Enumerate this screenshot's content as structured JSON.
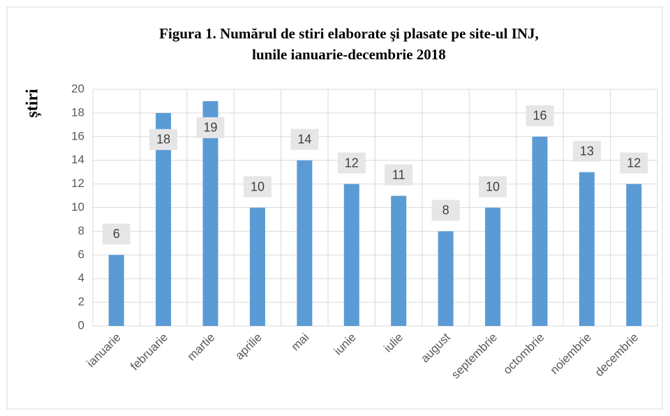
{
  "chart_data": {
    "type": "bar",
    "title": [
      "Figura 1. Numărul de stiri  elaborate şi plasate pe site-ul INJ,",
      "lunile ianuarie-decembrie 2018"
    ],
    "y_label": "știri",
    "categories": [
      "ianuarie",
      "februarie",
      "martie",
      "aprilie",
      "mai",
      "iunie",
      "iulie",
      "august",
      "septembrie",
      "octombrie",
      "noiembrie",
      "decembrie"
    ],
    "values": [
      6,
      18,
      19,
      10,
      14,
      12,
      11,
      8,
      10,
      16,
      13,
      12
    ],
    "color": "#5b9bd5",
    "ylim": [
      0,
      20
    ],
    "yticks": [
      0,
      2,
      4,
      6,
      8,
      10,
      12,
      14,
      16,
      18,
      20
    ],
    "grid": true
  }
}
